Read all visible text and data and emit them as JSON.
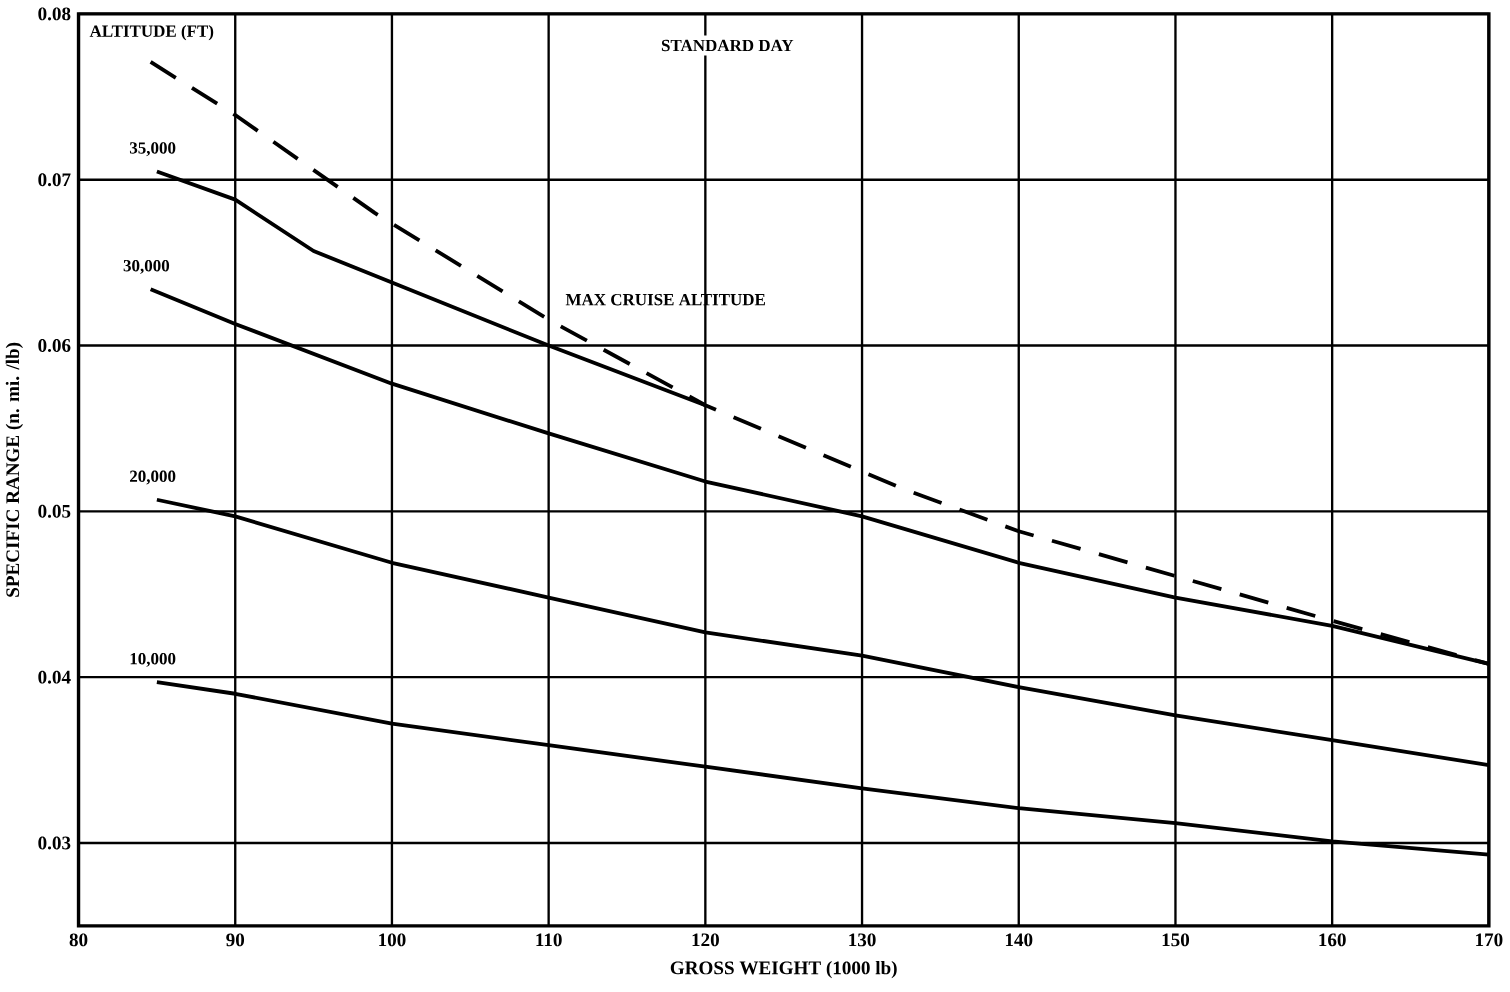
{
  "chart_data": {
    "type": "line",
    "xlabel": "GROSS WEIGHT (1000 lb)",
    "ylabel": "SPECIFIC RANGE (n. mi. /lb)",
    "legend_title": "ALTITUDE (FT)",
    "annotations": [
      "STANDARD DAY"
    ],
    "xlim": [
      80,
      170
    ],
    "ylim": [
      0.025,
      0.08
    ],
    "xticks": [
      80,
      90,
      100,
      110,
      120,
      130,
      140,
      150,
      160,
      170
    ],
    "yticks": [
      0.03,
      0.04,
      0.05,
      0.06,
      0.07,
      0.08
    ],
    "grid": true,
    "legend": false,
    "marker": "none",
    "series": [
      {
        "name": "35,000",
        "color": "#000000",
        "line_style": "solid",
        "x": [
          85,
          90,
          95,
          100,
          110,
          120
        ],
        "values": [
          0.0705,
          0.0688,
          0.0657,
          0.0638,
          0.06,
          0.0564
        ]
      },
      {
        "name": "30,000",
        "color": "#000000",
        "line_style": "solid",
        "x": [
          84.6,
          90,
          100,
          110,
          120,
          130,
          140,
          150,
          160,
          170
        ],
        "values": [
          0.0634,
          0.0613,
          0.0577,
          0.0547,
          0.0518,
          0.0497,
          0.0469,
          0.0448,
          0.0431,
          0.0408
        ]
      },
      {
        "name": "20,000",
        "color": "#000000",
        "line_style": "solid",
        "x": [
          85,
          90,
          100,
          110,
          120,
          130,
          140,
          150,
          160,
          170
        ],
        "values": [
          0.0507,
          0.0497,
          0.0469,
          0.0448,
          0.0427,
          0.0413,
          0.0394,
          0.0377,
          0.0362,
          0.0347
        ]
      },
      {
        "name": "10,000",
        "color": "#000000",
        "line_style": "solid",
        "x": [
          85,
          90,
          100,
          110,
          120,
          130,
          140,
          150,
          160,
          170
        ],
        "values": [
          0.0397,
          0.039,
          0.0372,
          0.0359,
          0.0346,
          0.0333,
          0.0321,
          0.0312,
          0.0301,
          0.0293
        ]
      },
      {
        "name": "MAX CRUISE ALTITUDE",
        "color": "#000000",
        "line_style": "dashed",
        "x": [
          84.6,
          90,
          98.9,
          110.1,
          120,
          132.5,
          140,
          150,
          160,
          170
        ],
        "values": [
          0.0771,
          0.0739,
          0.068,
          0.0615,
          0.0564,
          0.0514,
          0.0488,
          0.0461,
          0.0434,
          0.0408
        ]
      }
    ]
  }
}
